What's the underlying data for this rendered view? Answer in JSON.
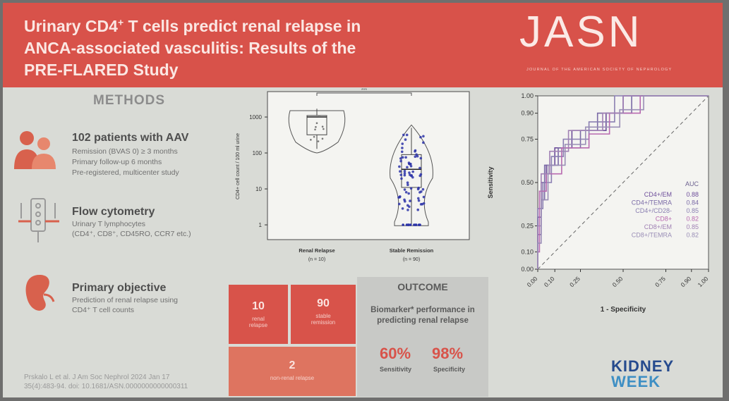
{
  "header": {
    "title_line1_a": "Urinary CD4",
    "title_line1_sup": "+",
    "title_line1_b": " T cells predict renal relapse in",
    "title_line2": "ANCA-associated vasculitis: Results of the",
    "title_line3": "PRE-FLARED Study",
    "journal": "JASN",
    "journal_subtitle": "JOURNAL OF THE AMERICAN SOCIETY OF NEPHROLOGY",
    "colors": {
      "header_bg": "#d8524a",
      "accent": "#d8534a"
    }
  },
  "methods": {
    "heading": "METHODS",
    "sections": [
      {
        "icon": "people-icon",
        "title": "102 patients with AAV",
        "lines": [
          "Remission (BVAS 0) ≥ 3 months",
          "Primary follow-up 6 months",
          "Pre-registered, multicenter study"
        ]
      },
      {
        "icon": "flow-cytometry-icon",
        "title": "Flow cytometry",
        "lines": [
          "Urinary T lymphocytes",
          "(CD4⁺, CD8⁺, CD45RO, CCR7 etc.)"
        ]
      },
      {
        "icon": "kidney-icon",
        "title": "Primary objective",
        "lines": [
          "Prediction of renal relapse using",
          "CD4⁺ T cell counts"
        ]
      }
    ]
  },
  "grid": {
    "relapse_count": "10",
    "relapse_label": "renal relapse",
    "stable_count": "90",
    "stable_label": "stable remission",
    "nonrenal_count": "2",
    "nonrenal_label": "non-renal relapse"
  },
  "outcome": {
    "heading": "OUTCOME",
    "text_line1": "Biomarker* performance in",
    "text_line2": "predicting renal relapse",
    "sensitivity_value": "60%",
    "sensitivity_label": "Sensitivity",
    "specificity_value": "98%",
    "specificity_label": "Specificity"
  },
  "citation": {
    "line1": "Prskalo L et al. J Am Soc Nephrol 2024 Jan 17",
    "line2": "35(4):483-94. doi: 10.1681/ASN.0000000000000311"
  },
  "logo": {
    "line1": "KIDNEY",
    "line2": "WEEK"
  },
  "chart_data": [
    {
      "type": "boxplot",
      "ylabel": "CD4+ cell count / 100 ml urine",
      "yscale": "log",
      "yticks": [
        "1",
        "10",
        "100",
        "1000"
      ],
      "significance": "***",
      "categories": [
        "Renal Relapse",
        "Stable Remission"
      ],
      "category_n": [
        "(n = 10)",
        "(n = 90)"
      ],
      "series": [
        {
          "name": "Renal Relapse",
          "q1": 320,
          "median": 1000,
          "q3": 1100,
          "min": 130,
          "max": 1700
        },
        {
          "name": "Stable Remission",
          "q1": 11,
          "median": 35,
          "q3": 90,
          "min": 1,
          "max": 500
        }
      ]
    },
    {
      "type": "line",
      "xlabel": "1 - Specificity",
      "ylabel": "Sensitivity",
      "xticks": [
        "0.00",
        "0.10",
        "0.25",
        "0.50",
        "0.75",
        "0.90",
        "1.00"
      ],
      "yticks": [
        "0.00",
        "0.10",
        "0.25",
        "0.50",
        "0.75",
        "0.90",
        "1.00"
      ],
      "legend_title": "AUC",
      "legend_position": "bottom-right",
      "series": [
        {
          "name": "CD4+/EM",
          "auc": "0.88",
          "color": "#6d4d9a"
        },
        {
          "name": "CD4+/TEMRA",
          "auc": "0.84",
          "color": "#7a6aa6"
        },
        {
          "name": "CD4+/CD28-",
          "auc": "0.85",
          "color": "#8a7fb2"
        },
        {
          "name": "CD8+",
          "auc": "0.82",
          "color": "#b86ab0"
        },
        {
          "name": "CD8+/EM",
          "auc": "0.85",
          "color": "#a081b4"
        },
        {
          "name": "CD8+/TEMRA",
          "auc": "0.82",
          "color": "#9a8eb6"
        }
      ]
    }
  ]
}
